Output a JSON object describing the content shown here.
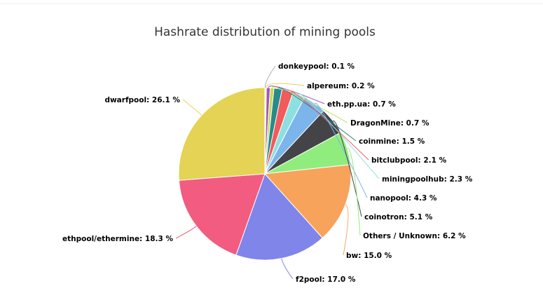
{
  "chart_data": {
    "type": "pie",
    "title": "Hashrate distribution of mining pools",
    "slices": [
      {
        "name": "donkeypool",
        "value": 0.1,
        "label": "donkeypool: 0.1 %",
        "color": "#b0b0b0"
      },
      {
        "name": "alpereum",
        "value": 0.2,
        "label": "alpereum: 0.2 %",
        "color": "#e3d35a"
      },
      {
        "name": "eth.pp.ua",
        "value": 0.7,
        "label": "eth.pp.ua: 0.7 %",
        "color": "#9b59b6"
      },
      {
        "name": "DragonMine",
        "value": 0.7,
        "label": "DragonMine: 0.7 %",
        "color": "#c6d957"
      },
      {
        "name": "coinmine",
        "value": 1.5,
        "label": "coinmine: 1.5 %",
        "color": "#2a8a8a"
      },
      {
        "name": "bitclubpool",
        "value": 2.1,
        "label": "bitclubpool: 2.1 %",
        "color": "#f15b5b"
      },
      {
        "name": "miningpoolhub",
        "value": 2.3,
        "label": "miningpoolhub: 2.3 %",
        "color": "#8ee0e0"
      },
      {
        "name": "nanopool",
        "value": 4.3,
        "label": "nanopool: 4.3 %",
        "color": "#7cb5ec"
      },
      {
        "name": "coinotron",
        "value": 5.1,
        "label": "coinotron: 5.1 %",
        "color": "#434348"
      },
      {
        "name": "Others / Unknown",
        "value": 6.2,
        "label": "Others / Unknown: 6.2 %",
        "color": "#90ed7d"
      },
      {
        "name": "bw",
        "value": 15.0,
        "label": "bw: 15.0 %",
        "color": "#f7a35c"
      },
      {
        "name": "f2pool",
        "value": 17.0,
        "label": "f2pool: 17.0 %",
        "color": "#8085e9"
      },
      {
        "name": "ethpool/ethermine",
        "value": 18.3,
        "label": "ethpool/ethermine: 18.3 %",
        "color": "#f15c80"
      },
      {
        "name": "dwarfpool",
        "value": 26.1,
        "label": "dwarfpool: 26.1 %",
        "color": "#e4d354"
      }
    ]
  }
}
